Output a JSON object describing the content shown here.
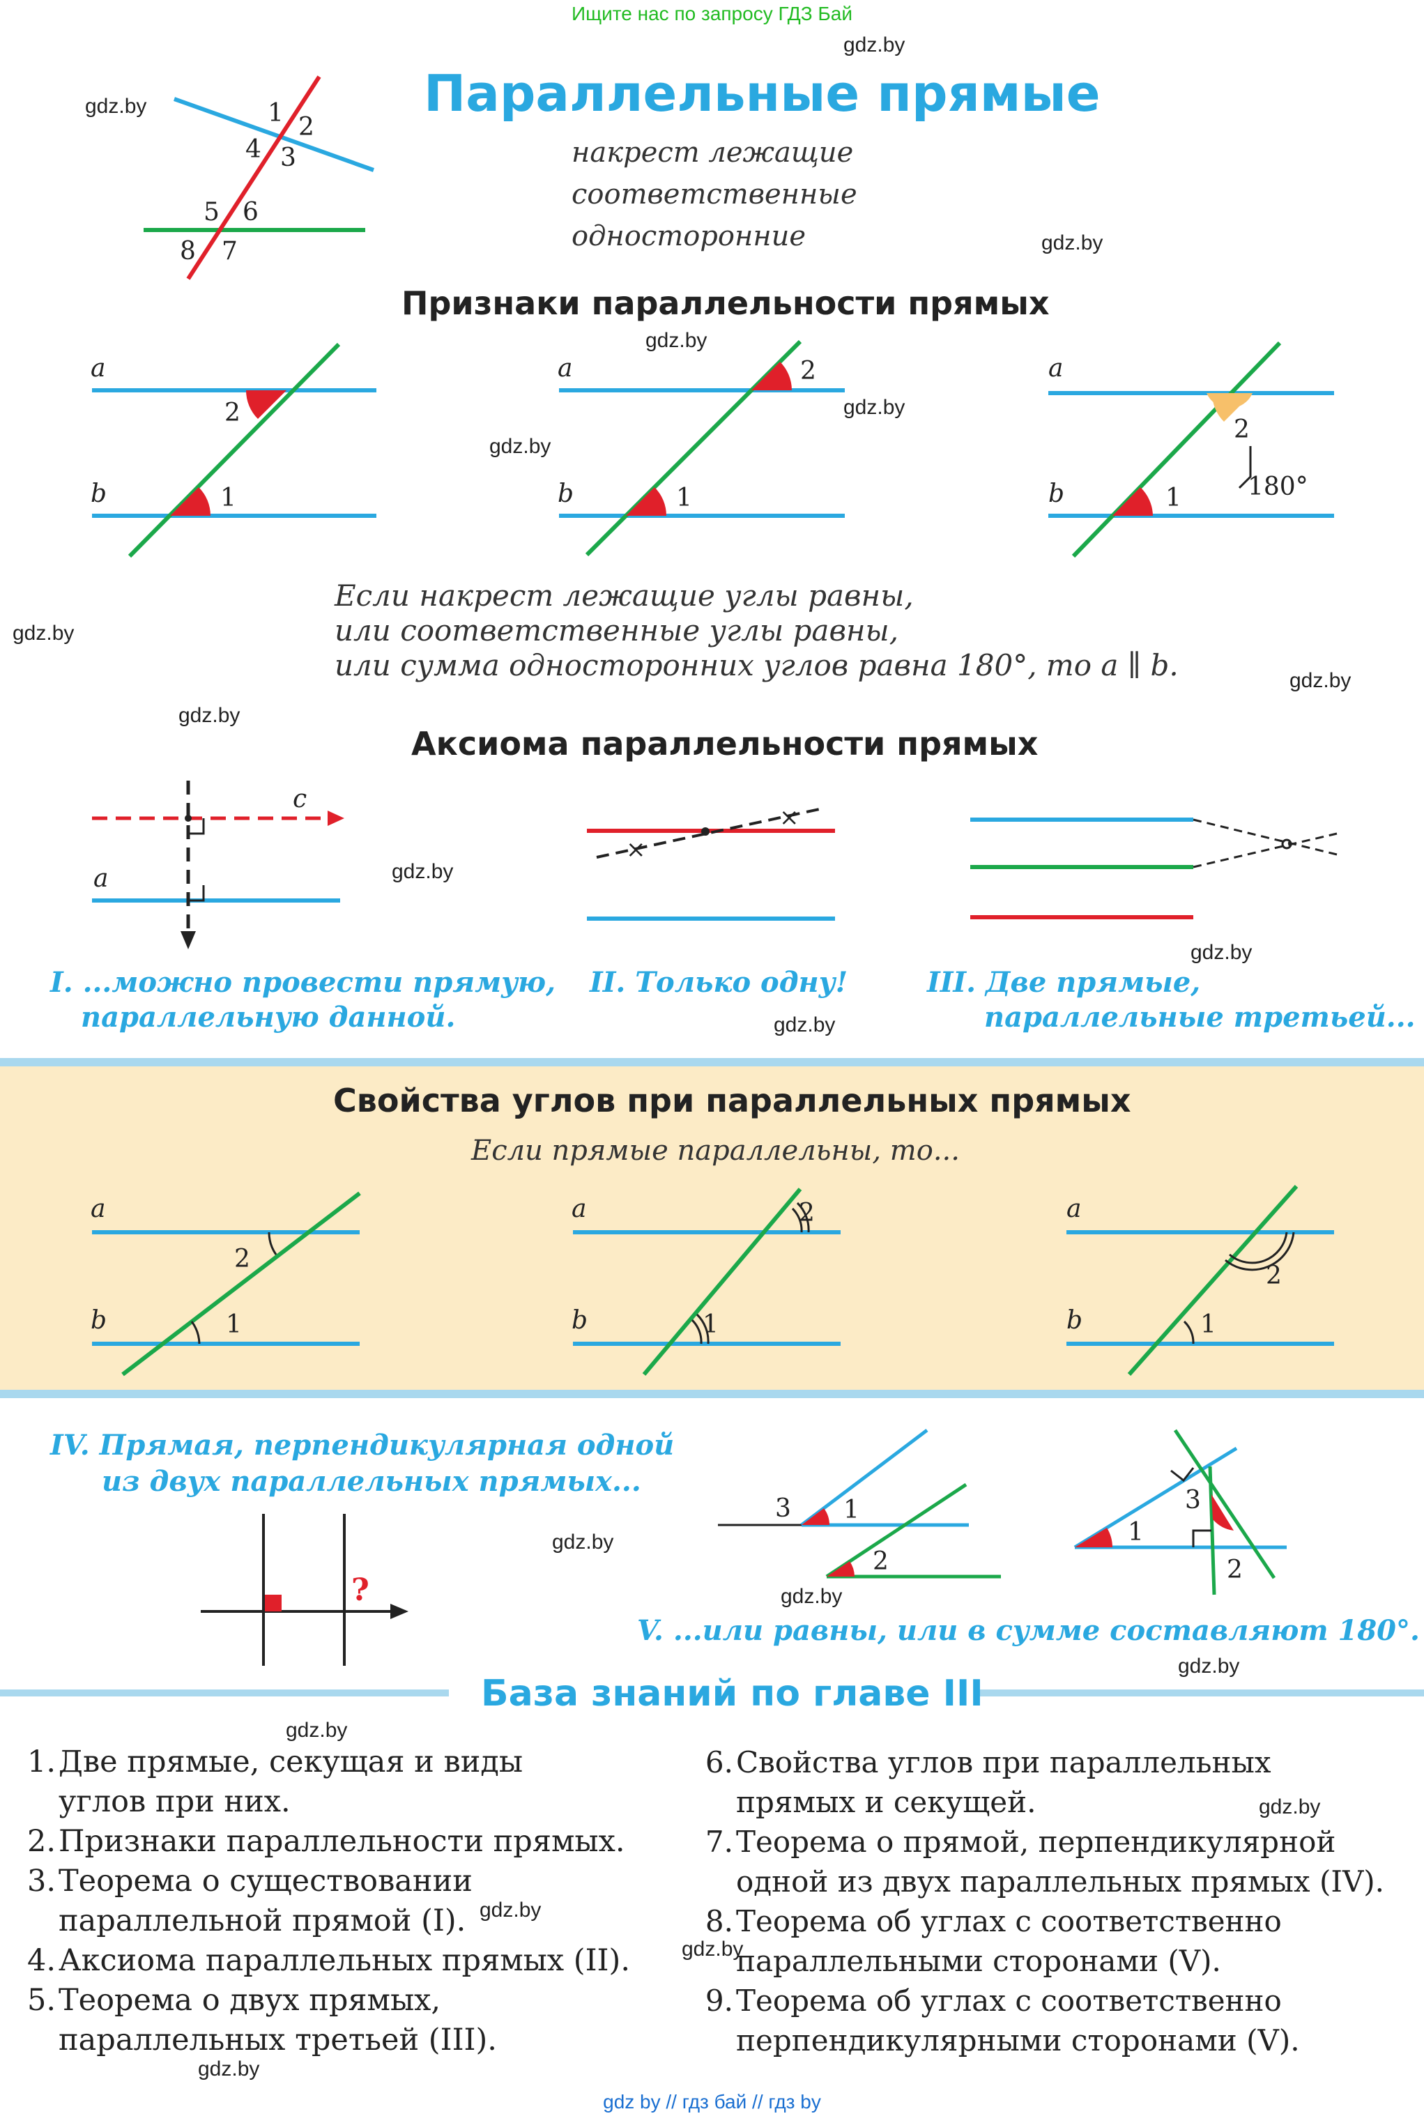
{
  "top_link": "Ищите нас по запросу ГДЗ Бай",
  "watermark": "gdz.by",
  "footer_link": "gdz by  //  гдз бай  //  гдз by",
  "title": "Параллельные прямые",
  "angle_types": [
    "накрест лежащие",
    "соответственные",
    "односторонние"
  ],
  "top_angle_labels": [
    "1",
    "2",
    "3",
    "4",
    "5",
    "6",
    "7",
    "8"
  ],
  "colors": {
    "blue": "#2aa8e0",
    "green": "#1ba84a",
    "red": "#e0202a",
    "band": "#fcebc6",
    "orange": "#f7c06a"
  },
  "signs": {
    "heading": "Признаки параллельности прямых",
    "line_a": "a",
    "line_b": "b",
    "label_1": "1",
    "label_2": "2",
    "sum_label": "180°",
    "text": [
      "Если накрест лежащие углы равны,",
      "или соответственные углы  равны,",
      "или сумма односторонних углов равна 180°, то a ∥ b."
    ]
  },
  "axiom": {
    "heading": "Аксиома параллельности прямых",
    "line_c": "c",
    "line_a": "a",
    "caption_1": [
      "I. ...можно провести прямую,",
      "параллельную данной."
    ],
    "caption_2": "II. Только одну!",
    "caption_3": [
      "III. Две прямые,",
      "параллельные третьей..."
    ]
  },
  "properties": {
    "heading": "Свойства углов при параллельных прямых",
    "subheading": "Если прямые параллельны, то...",
    "line_a": "a",
    "line_b": "b",
    "label_1": "1",
    "label_2": "2"
  },
  "perp": {
    "caption": [
      "IV. Прямая, перпендикулярная одной",
      "из двух параллельных прямых..."
    ],
    "question": "?"
  },
  "angles_sides": {
    "label_1": "1",
    "label_2": "2",
    "label_3": "3",
    "caption": "V. ...или равны, или в сумме составляют 180°."
  },
  "knowledge": {
    "heading": "База знаний по главе III",
    "left": [
      {
        "num": "1.",
        "lines": [
          "Две прямые, секущая и виды",
          "углов при них."
        ]
      },
      {
        "num": "2.",
        "lines": [
          "Признаки параллельности прямых."
        ]
      },
      {
        "num": "3.",
        "lines": [
          "Теорема о существовании",
          "параллельной прямой (I)."
        ]
      },
      {
        "num": "4.",
        "lines": [
          "Аксиома параллельных прямых (II)."
        ]
      },
      {
        "num": "5.",
        "lines": [
          "Теорема о двух прямых,",
          "параллельных третьей (III)."
        ]
      }
    ],
    "right": [
      {
        "num": "6.",
        "lines": [
          "Свойства углов при параллельных",
          "прямых и секущей."
        ]
      },
      {
        "num": "7.",
        "lines": [
          "Теорема о прямой, перпендикулярной",
          "одной из двух параллельных прямых (IV)."
        ]
      },
      {
        "num": "8.",
        "lines": [
          "Теорема об углах с соответственно",
          "параллельными сторонами (V)."
        ]
      },
      {
        "num": "9.",
        "lines": [
          "Теорема об углах с соответственно",
          "перпендикулярными сторонами (V)."
        ]
      }
    ]
  }
}
